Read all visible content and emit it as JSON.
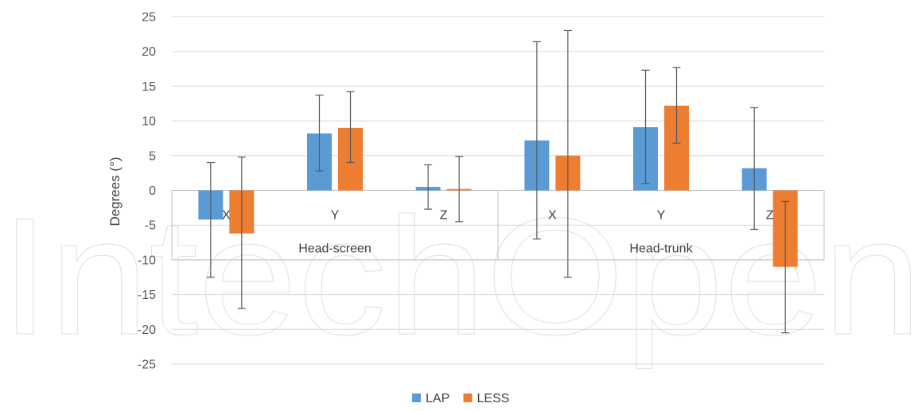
{
  "chart_data": {
    "type": "bar",
    "ylabel": "Degrees (°)",
    "ylim": [
      -25,
      25
    ],
    "yticks": [
      25,
      20,
      15,
      10,
      5,
      0,
      -5,
      -10,
      -15,
      -20,
      -25
    ],
    "grid": true,
    "legend_position": "bottom",
    "groups": [
      {
        "label": "Head-screen",
        "categories": [
          "X",
          "Y",
          "Z"
        ]
      },
      {
        "label": "Head-trunk",
        "categories": [
          "X",
          "Y",
          "Z"
        ]
      }
    ],
    "categories": [
      "X",
      "Y",
      "Z",
      "X",
      "Y",
      "Z"
    ],
    "series": [
      {
        "name": "LAP",
        "color": "#5b9bd5",
        "values": [
          -4.2,
          8.2,
          0.5,
          7.2,
          9.1,
          3.2
        ],
        "error_low": [
          -12.5,
          2.8,
          -2.7,
          -7.0,
          1.0,
          -5.6
        ],
        "error_high": [
          4.0,
          13.7,
          3.7,
          21.4,
          17.3,
          11.9
        ]
      },
      {
        "name": "LESS",
        "color": "#ed7d31",
        "values": [
          -6.2,
          9.0,
          0.2,
          5.0,
          12.2,
          -11.0
        ],
        "error_low": [
          -17.0,
          4.0,
          -4.5,
          -12.5,
          6.8,
          -20.5
        ],
        "error_high": [
          4.8,
          14.2,
          4.9,
          23.0,
          17.7,
          -1.6
        ]
      }
    ]
  },
  "watermark_text": "IntechOpen"
}
